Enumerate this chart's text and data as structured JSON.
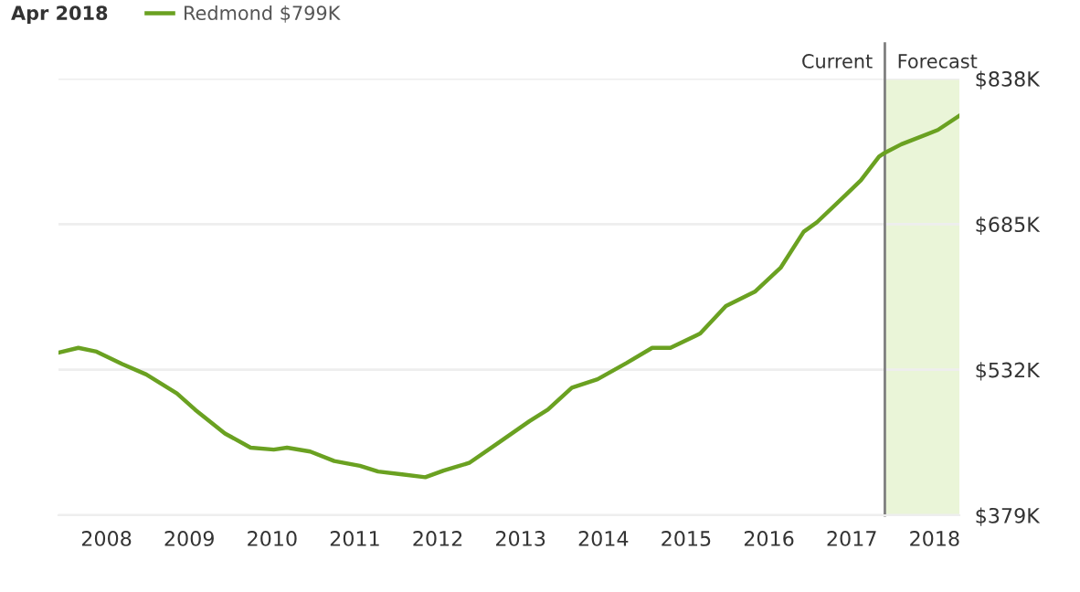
{
  "chart_data": {
    "type": "line",
    "title": "Apr 2018",
    "x": [
      2007.42,
      2007.66,
      2007.88,
      2008.19,
      2008.48,
      2008.85,
      2009.07,
      2009.43,
      2009.74,
      2010.02,
      2010.18,
      2010.46,
      2010.75,
      2011.06,
      2011.28,
      2011.57,
      2011.85,
      2012.07,
      2012.38,
      2012.73,
      2013.11,
      2013.33,
      2013.62,
      2013.93,
      2014.28,
      2014.59,
      2014.81,
      2015.17,
      2015.48,
      2015.83,
      2016.14,
      2016.42,
      2016.58,
      2016.93,
      2017.11,
      2017.33,
      2017.4,
      2017.6,
      2018.04,
      2018.3
    ],
    "series": [
      {
        "name": "Redmond $799K",
        "color": "#6aa121",
        "values": [
          550,
          555,
          551,
          538,
          527,
          507,
          490,
          465,
          450,
          448,
          450,
          446,
          436,
          431,
          425,
          422,
          419,
          426,
          434,
          455,
          478,
          490,
          513,
          522,
          539,
          555,
          555,
          570,
          599,
          614,
          639,
          677,
          687,
          716,
          731,
          756,
          760,
          769,
          784,
          799
        ]
      }
    ],
    "xlim": [
      2007.42,
      2018.3
    ],
    "ylim": [
      379,
      838
    ],
    "xticks": [
      2008,
      2009,
      2010,
      2011,
      2012,
      2013,
      2014,
      2015,
      2016,
      2017,
      2018
    ],
    "yticks": [
      {
        "value": 379,
        "label": "$379K"
      },
      {
        "value": 532,
        "label": "$532K"
      },
      {
        "value": 685,
        "label": "$685K"
      },
      {
        "value": 838,
        "label": "$838K"
      }
    ],
    "ref_lines": [
      {
        "axis": "x",
        "value": 2017.4,
        "label": "Current",
        "color": "#7f7f7f"
      }
    ],
    "bands": [
      {
        "axis": "x",
        "from": 2017.4,
        "to": 2018.3,
        "label": "Forecast",
        "color": "#eaf5d8"
      }
    ],
    "grid": "y",
    "legend": "top left",
    "marker": "none",
    "line_style": "solid"
  }
}
